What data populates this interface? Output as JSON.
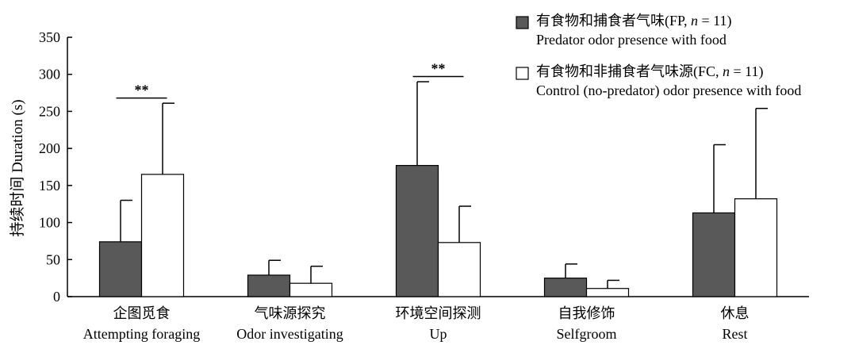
{
  "chart_data": {
    "type": "bar",
    "ylabel": "持续时间 Duration (s)",
    "ylim": [
      0,
      350
    ],
    "yticks": [
      0,
      50,
      100,
      150,
      200,
      250,
      300,
      350
    ],
    "grid": false,
    "legend_position": "top-right",
    "categories": [
      {
        "cn": "企图觅食",
        "en": "Attempting foraging"
      },
      {
        "cn": "气味源探究",
        "en": "Odor investigating"
      },
      {
        "cn": "环境空间探测",
        "en": "Up"
      },
      {
        "cn": "自我修饰",
        "en": "Selfgroom"
      },
      {
        "cn": "休息",
        "en": "Rest"
      }
    ],
    "series": [
      {
        "name_cn": "有食物和捕食者气味(FP, ",
        "name_n": "n",
        "name_tail": " = 11)",
        "name_en": "Predator odor presence with food",
        "color": "#595959",
        "values": [
          74,
          29,
          177,
          25,
          113
        ],
        "errors": [
          56,
          20,
          113,
          19,
          92
        ]
      },
      {
        "name_cn": "有食物和非捕食者气味源(FC, ",
        "name_n": "n",
        "name_tail": " = 11)",
        "name_en": "Control (no-predator) odor presence with food",
        "color": "#ffffff",
        "values": [
          165,
          18,
          73,
          11,
          132
        ],
        "errors": [
          96,
          23,
          49,
          11,
          122
        ]
      }
    ],
    "significance": [
      {
        "category_index": 0,
        "label": "**",
        "y": 268
      },
      {
        "category_index": 2,
        "label": "**",
        "y": 297
      }
    ]
  }
}
